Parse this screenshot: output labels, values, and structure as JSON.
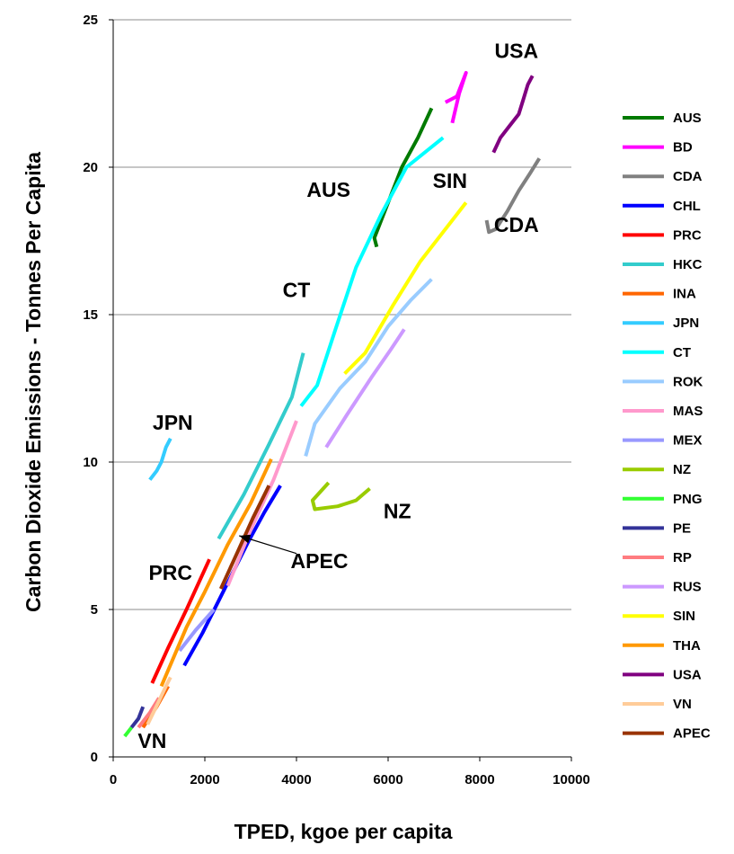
{
  "chart_data": {
    "type": "line",
    "xlabel": "TPED, kgoe per capita",
    "ylabel": "Carbon Dioxide Emissions - Tonnes Per Capita",
    "xlim": [
      0,
      10000
    ],
    "ylim": [
      0,
      25
    ],
    "x_ticks": [
      0,
      2000,
      4000,
      6000,
      8000,
      10000
    ],
    "y_ticks": [
      0,
      5,
      10,
      15,
      20,
      25
    ],
    "x_tick_labels": [
      "0",
      "2000",
      "4000",
      "6000",
      "8000",
      "10000"
    ],
    "y_tick_labels": [
      "0",
      "5",
      "10",
      "15",
      "20",
      "25"
    ],
    "grid": "horizontal",
    "legend_position": "right",
    "series": [
      {
        "name": "AUS",
        "color": "#007A00",
        "points": [
          [
            5750,
            17.3
          ],
          [
            5700,
            17.6
          ],
          [
            6000,
            18.8
          ],
          [
            6300,
            20.0
          ],
          [
            6650,
            21.0
          ],
          [
            6950,
            22.0
          ]
        ]
      },
      {
        "name": "BD",
        "color": "#FF00FF",
        "points": [
          [
            7250,
            22.2
          ],
          [
            7500,
            22.4
          ],
          [
            7700,
            23.2
          ],
          [
            7550,
            22.5
          ],
          [
            7400,
            21.5
          ]
        ]
      },
      {
        "name": "CDA",
        "color": "#808080",
        "points": [
          [
            8150,
            18.2
          ],
          [
            8200,
            17.8
          ],
          [
            8350,
            17.9
          ],
          [
            8600,
            18.5
          ],
          [
            8850,
            19.2
          ],
          [
            9100,
            19.8
          ],
          [
            9300,
            20.3
          ]
        ]
      },
      {
        "name": "CHL",
        "color": "#0000FF",
        "points": [
          [
            1550,
            3.1
          ],
          [
            1950,
            4.2
          ],
          [
            2400,
            5.6
          ],
          [
            2950,
            7.3
          ],
          [
            3300,
            8.3
          ],
          [
            3650,
            9.2
          ]
        ]
      },
      {
        "name": "PRC",
        "color": "#FF0000",
        "points": [
          [
            850,
            2.5
          ],
          [
            1200,
            3.7
          ],
          [
            1600,
            5.0
          ],
          [
            2100,
            6.7
          ]
        ]
      },
      {
        "name": "HKC",
        "color": "#33CCCC",
        "points": [
          [
            2300,
            7.4
          ],
          [
            2850,
            8.9
          ],
          [
            3400,
            10.6
          ],
          [
            3900,
            12.2
          ],
          [
            4150,
            13.7
          ]
        ]
      },
      {
        "name": "INA",
        "color": "#FF6600",
        "points": [
          [
            650,
            1.0
          ],
          [
            950,
            1.7
          ],
          [
            1200,
            2.4
          ]
        ]
      },
      {
        "name": "JPN",
        "color": "#33CCFF",
        "points": [
          [
            800,
            9.4
          ],
          [
            950,
            9.7
          ],
          [
            1050,
            10.0
          ],
          [
            1150,
            10.5
          ],
          [
            1250,
            10.8
          ]
        ]
      },
      {
        "name": "CT",
        "color": "#00FFFF",
        "points": [
          [
            4100,
            11.9
          ],
          [
            4450,
            12.6
          ],
          [
            4850,
            14.5
          ],
          [
            5300,
            16.6
          ],
          [
            5850,
            18.4
          ],
          [
            6400,
            20.0
          ],
          [
            7200,
            21.0
          ]
        ]
      },
      {
        "name": "ROK",
        "color": "#99CCFF",
        "points": [
          [
            4200,
            10.2
          ],
          [
            4400,
            11.3
          ],
          [
            4950,
            12.5
          ],
          [
            5500,
            13.4
          ],
          [
            6000,
            14.6
          ],
          [
            6500,
            15.5
          ],
          [
            6950,
            16.2
          ]
        ]
      },
      {
        "name": "MAS",
        "color": "#FF99CC",
        "points": [
          [
            2500,
            5.8
          ],
          [
            3000,
            7.7
          ],
          [
            3500,
            9.4
          ],
          [
            4000,
            11.4
          ]
        ]
      },
      {
        "name": "MEX",
        "color": "#9999FF",
        "points": [
          [
            1450,
            3.6
          ],
          [
            1800,
            4.3
          ],
          [
            2200,
            5.0
          ]
        ]
      },
      {
        "name": "NZ",
        "color": "#99CC00",
        "points": [
          [
            4700,
            9.3
          ],
          [
            4350,
            8.7
          ],
          [
            4400,
            8.4
          ],
          [
            4900,
            8.5
          ],
          [
            5300,
            8.7
          ],
          [
            5600,
            9.1
          ]
        ]
      },
      {
        "name": "PNG",
        "color": "#33FF33",
        "points": [
          [
            250,
            0.7
          ],
          [
            300,
            0.8
          ],
          [
            400,
            1.0
          ]
        ]
      },
      {
        "name": "PE",
        "color": "#333399",
        "points": [
          [
            400,
            1.0
          ],
          [
            550,
            1.3
          ],
          [
            650,
            1.7
          ]
        ]
      },
      {
        "name": "RP",
        "color": "#FF7C80",
        "points": [
          [
            550,
            1.0
          ],
          [
            800,
            1.5
          ],
          [
            1000,
            2.0
          ]
        ]
      },
      {
        "name": "RUS",
        "color": "#CC99FF",
        "points": [
          [
            4650,
            10.5
          ],
          [
            5100,
            11.6
          ],
          [
            5650,
            12.9
          ],
          [
            6050,
            13.8
          ],
          [
            6350,
            14.5
          ]
        ]
      },
      {
        "name": "SIN",
        "color": "#FFFF00",
        "points": [
          [
            5050,
            13.0
          ],
          [
            5500,
            13.7
          ],
          [
            6100,
            15.3
          ],
          [
            6700,
            16.8
          ],
          [
            7200,
            17.8
          ],
          [
            7700,
            18.8
          ]
        ]
      },
      {
        "name": "THA",
        "color": "#FF9900",
        "points": [
          [
            1050,
            2.4
          ],
          [
            1600,
            4.4
          ],
          [
            2000,
            5.6
          ],
          [
            2500,
            7.2
          ],
          [
            3000,
            8.6
          ],
          [
            3450,
            10.1
          ]
        ]
      },
      {
        "name": "USA",
        "color": "#800080",
        "points": [
          [
            8300,
            20.5
          ],
          [
            8450,
            21.0
          ],
          [
            8650,
            21.4
          ],
          [
            8850,
            21.8
          ],
          [
            8950,
            22.3
          ],
          [
            9050,
            22.8
          ],
          [
            9150,
            23.1
          ]
        ]
      },
      {
        "name": "VN",
        "color": "#FFCC99",
        "points": [
          [
            750,
            1.1
          ],
          [
            1000,
            1.9
          ],
          [
            1150,
            2.4
          ],
          [
            1250,
            2.7
          ]
        ]
      },
      {
        "name": "APEC",
        "color": "#993300",
        "points": [
          [
            2350,
            5.7
          ],
          [
            2700,
            6.9
          ],
          [
            3050,
            8.1
          ],
          [
            3400,
            9.2
          ]
        ]
      }
    ],
    "annotations": [
      {
        "text": "USA",
        "x": 8800,
        "y": 23.7
      },
      {
        "text": "AUS",
        "x": 4700,
        "y": 19.0
      },
      {
        "text": "SIN",
        "x": 7350,
        "y": 19.3
      },
      {
        "text": "CDA",
        "x": 8800,
        "y": 17.8
      },
      {
        "text": "CT",
        "x": 4000,
        "y": 15.6
      },
      {
        "text": "JPN",
        "x": 1300,
        "y": 11.1
      },
      {
        "text": "NZ",
        "x": 6200,
        "y": 8.1
      },
      {
        "text": "APEC",
        "x": 4500,
        "y": 6.4
      },
      {
        "text": "PRC",
        "x": 1250,
        "y": 6.0
      },
      {
        "text": "VN",
        "x": 850,
        "y": 0.3
      }
    ],
    "arrow": {
      "from": [
        4000,
        6.9
      ],
      "to": [
        2750,
        7.5
      ]
    }
  }
}
